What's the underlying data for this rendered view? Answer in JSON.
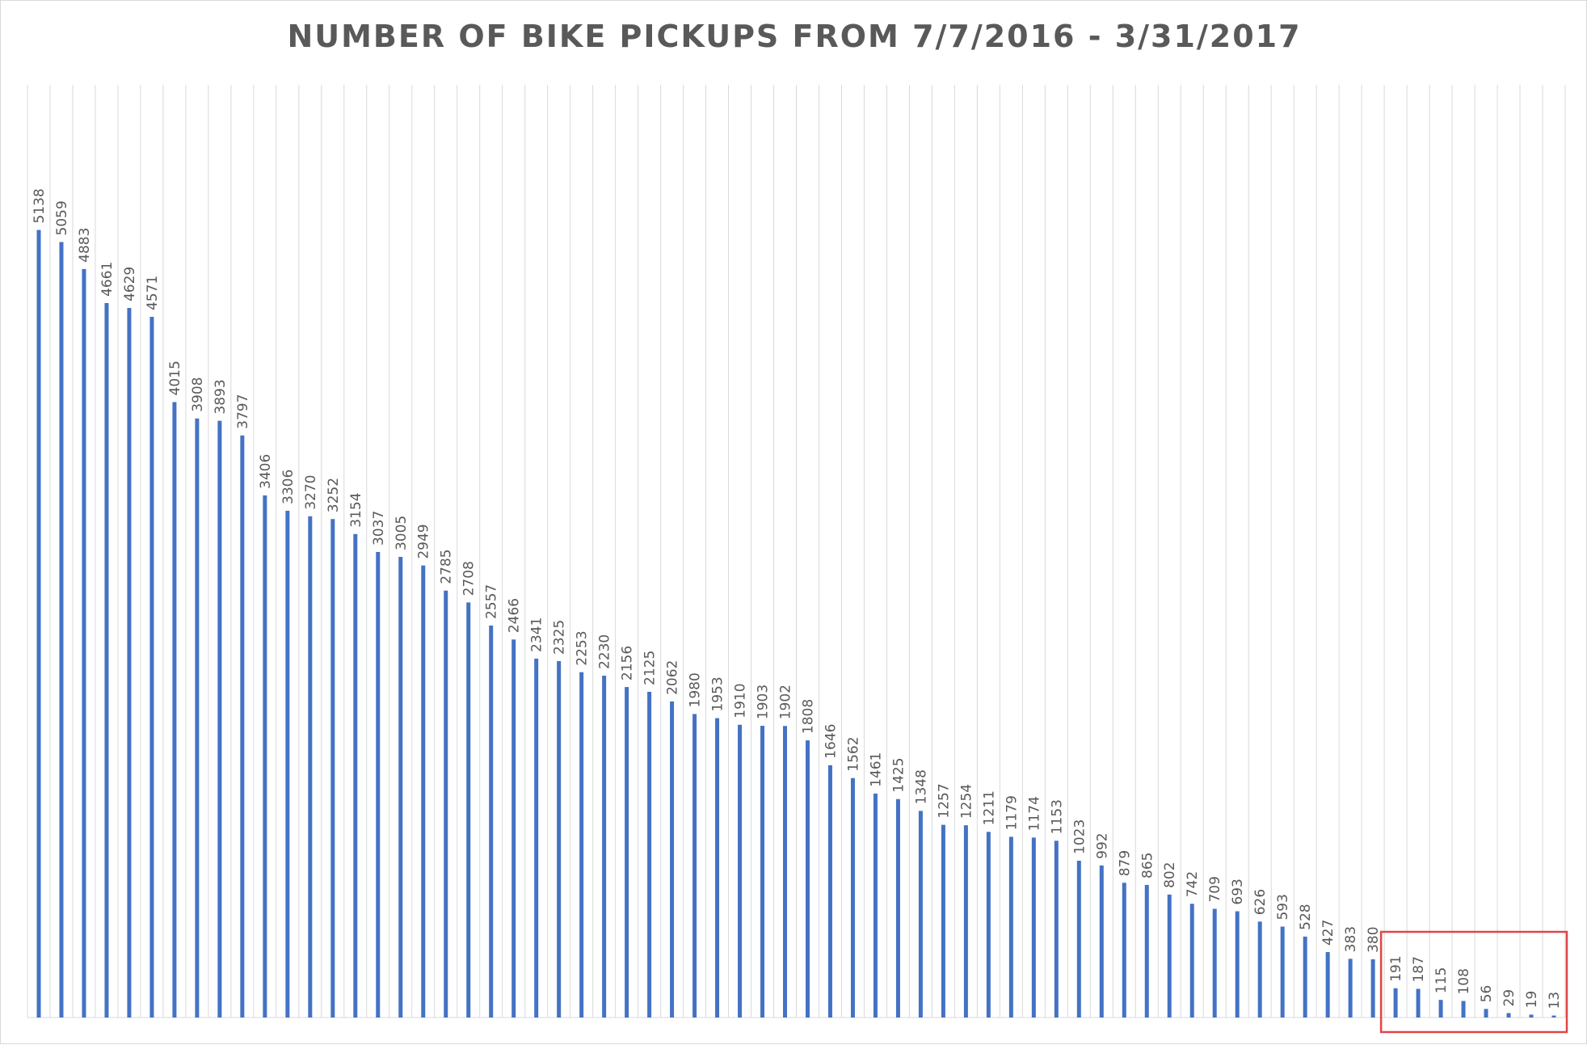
{
  "chart_data": {
    "type": "bar",
    "title": "NUMBER OF BIKE PICKUPS FROM 7/7/2016 - 3/31/2017",
    "xlabel": "",
    "ylabel": "",
    "values": [
      5138,
      5059,
      4883,
      4661,
      4629,
      4571,
      4015,
      3908,
      3893,
      3797,
      3406,
      3306,
      3270,
      3252,
      3154,
      3037,
      3005,
      2949,
      2785,
      2708,
      2557,
      2466,
      2341,
      2325,
      2253,
      2230,
      2156,
      2125,
      2062,
      1980,
      1953,
      1910,
      1903,
      1902,
      1808,
      1646,
      1562,
      1461,
      1425,
      1348,
      1257,
      1254,
      1211,
      1179,
      1174,
      1153,
      1023,
      992,
      879,
      865,
      802,
      742,
      709,
      693,
      626,
      593,
      528,
      427,
      383,
      380,
      191,
      187,
      115,
      108,
      56,
      29,
      19,
      13
    ],
    "data_labels": [
      "5138",
      "5059",
      "4883",
      "4661",
      "4629",
      "4571",
      "4015",
      "3908",
      "3893",
      "3797",
      "3406",
      "3306",
      "3270",
      "3252",
      "3154",
      "3037",
      "3005",
      "2949",
      "2785",
      "2708",
      "2557",
      "2466",
      "2341",
      "2325",
      "2253",
      "2230",
      "2156",
      "2125",
      "2062",
      "1980",
      "1953",
      "1910",
      "1903",
      "1902",
      "1808",
      "1646",
      "1562",
      "1461",
      "1425",
      "1348",
      "1257",
      "1254",
      "1211",
      "1179",
      "1174",
      "1153",
      "1023",
      "992",
      "879",
      "865",
      "802",
      "742",
      "709",
      "693",
      "626",
      "593",
      "528",
      "427",
      "383",
      "380",
      "191",
      "187",
      "115",
      "108",
      "56",
      "29",
      "19",
      "13"
    ],
    "ylim": [
      0,
      6000
    ],
    "grid": "vertical",
    "legend": "none",
    "highlight": {
      "from_index": 60,
      "to_index": 67,
      "color": "#e04646"
    },
    "colors": {
      "bar": "#4472c4",
      "grid": "#d9d9d9",
      "label": "#595959",
      "title": "#595959"
    }
  }
}
